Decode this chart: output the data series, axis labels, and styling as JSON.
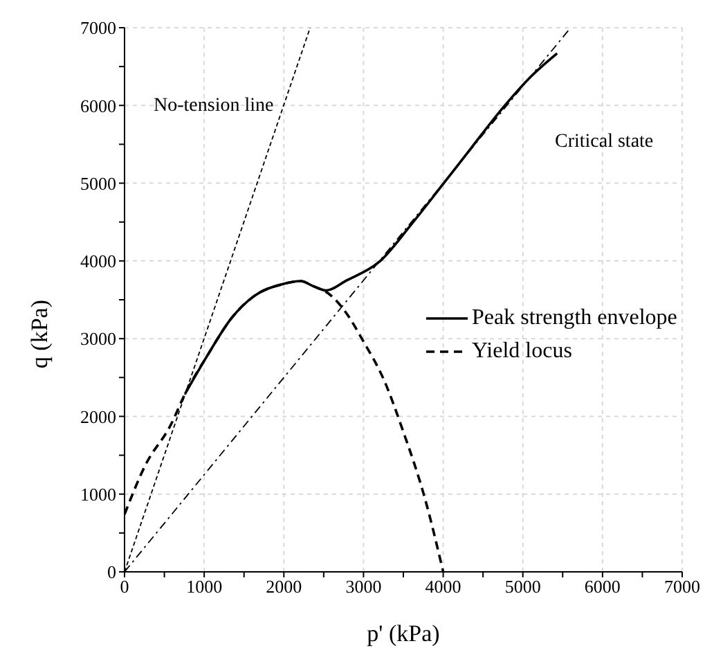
{
  "chart_data": {
    "type": "line",
    "xlabel": "p' (kPa)",
    "ylabel": "q (kPa)",
    "xlim": [
      0,
      7000
    ],
    "ylim": [
      0,
      7000
    ],
    "xticks": [
      0,
      {
        "value": 500,
        "label": null
      },
      1000,
      {
        "value": 1500,
        "label": null
      },
      2000,
      {
        "value": 2500,
        "label": null
      },
      3000,
      {
        "value": 3500,
        "label": null
      },
      4000,
      {
        "value": 4500,
        "label": null
      },
      5000,
      {
        "value": 5500,
        "label": null
      },
      6000,
      {
        "value": 6500,
        "label": null
      },
      7000
    ],
    "yticks": [
      0,
      {
        "value": 500,
        "label": null
      },
      1000,
      {
        "value": 1500,
        "label": null
      },
      2000,
      {
        "value": 2500,
        "label": null
      },
      3000,
      {
        "value": 3500,
        "label": null
      },
      4000,
      {
        "value": 4500,
        "label": null
      },
      5000,
      {
        "value": 5500,
        "label": null
      },
      6000,
      {
        "value": 6500,
        "label": null
      },
      7000
    ],
    "grid": true,
    "legend": "right",
    "marker": "none",
    "series": [
      {
        "name": "Peak strength envelope",
        "color": "#000000",
        "line_style": "solid",
        "x": [
          760,
          1050,
          1340,
          1630,
          1980,
          2210,
          2380,
          2530,
          2790,
          3200,
          3600,
          4000,
          4350,
          4750,
          5100,
          5430
        ],
        "values": [
          2290,
          2800,
          3260,
          3550,
          3700,
          3740,
          3670,
          3620,
          3750,
          3990,
          4470,
          4990,
          5450,
          5970,
          6370,
          6670
        ]
      },
      {
        "name": "Yield locus",
        "color": "#000000",
        "line_style": "dashed",
        "x": [
          0,
          260,
          580,
          760,
          1050,
          1340,
          1630,
          1980,
          2210,
          2380,
          2560,
          2790,
          2990,
          3260,
          3490,
          3780,
          4000
        ],
        "values": [
          740,
          1370,
          1890,
          2290,
          2800,
          3260,
          3550,
          3700,
          3740,
          3670,
          3580,
          3320,
          2980,
          2460,
          1830,
          910,
          0
        ]
      },
      {
        "color": "#000000",
        "line_style": "dashed",
        "x": [
          0,
          2330
        ],
        "values": [
          0,
          7000
        ]
      },
      {
        "color": "#000000",
        "line_style": "dashdot",
        "x": [
          0,
          5600
        ],
        "values": [
          0,
          7000
        ]
      }
    ],
    "annotations": [
      "No-tension line",
      "Critical state"
    ]
  }
}
